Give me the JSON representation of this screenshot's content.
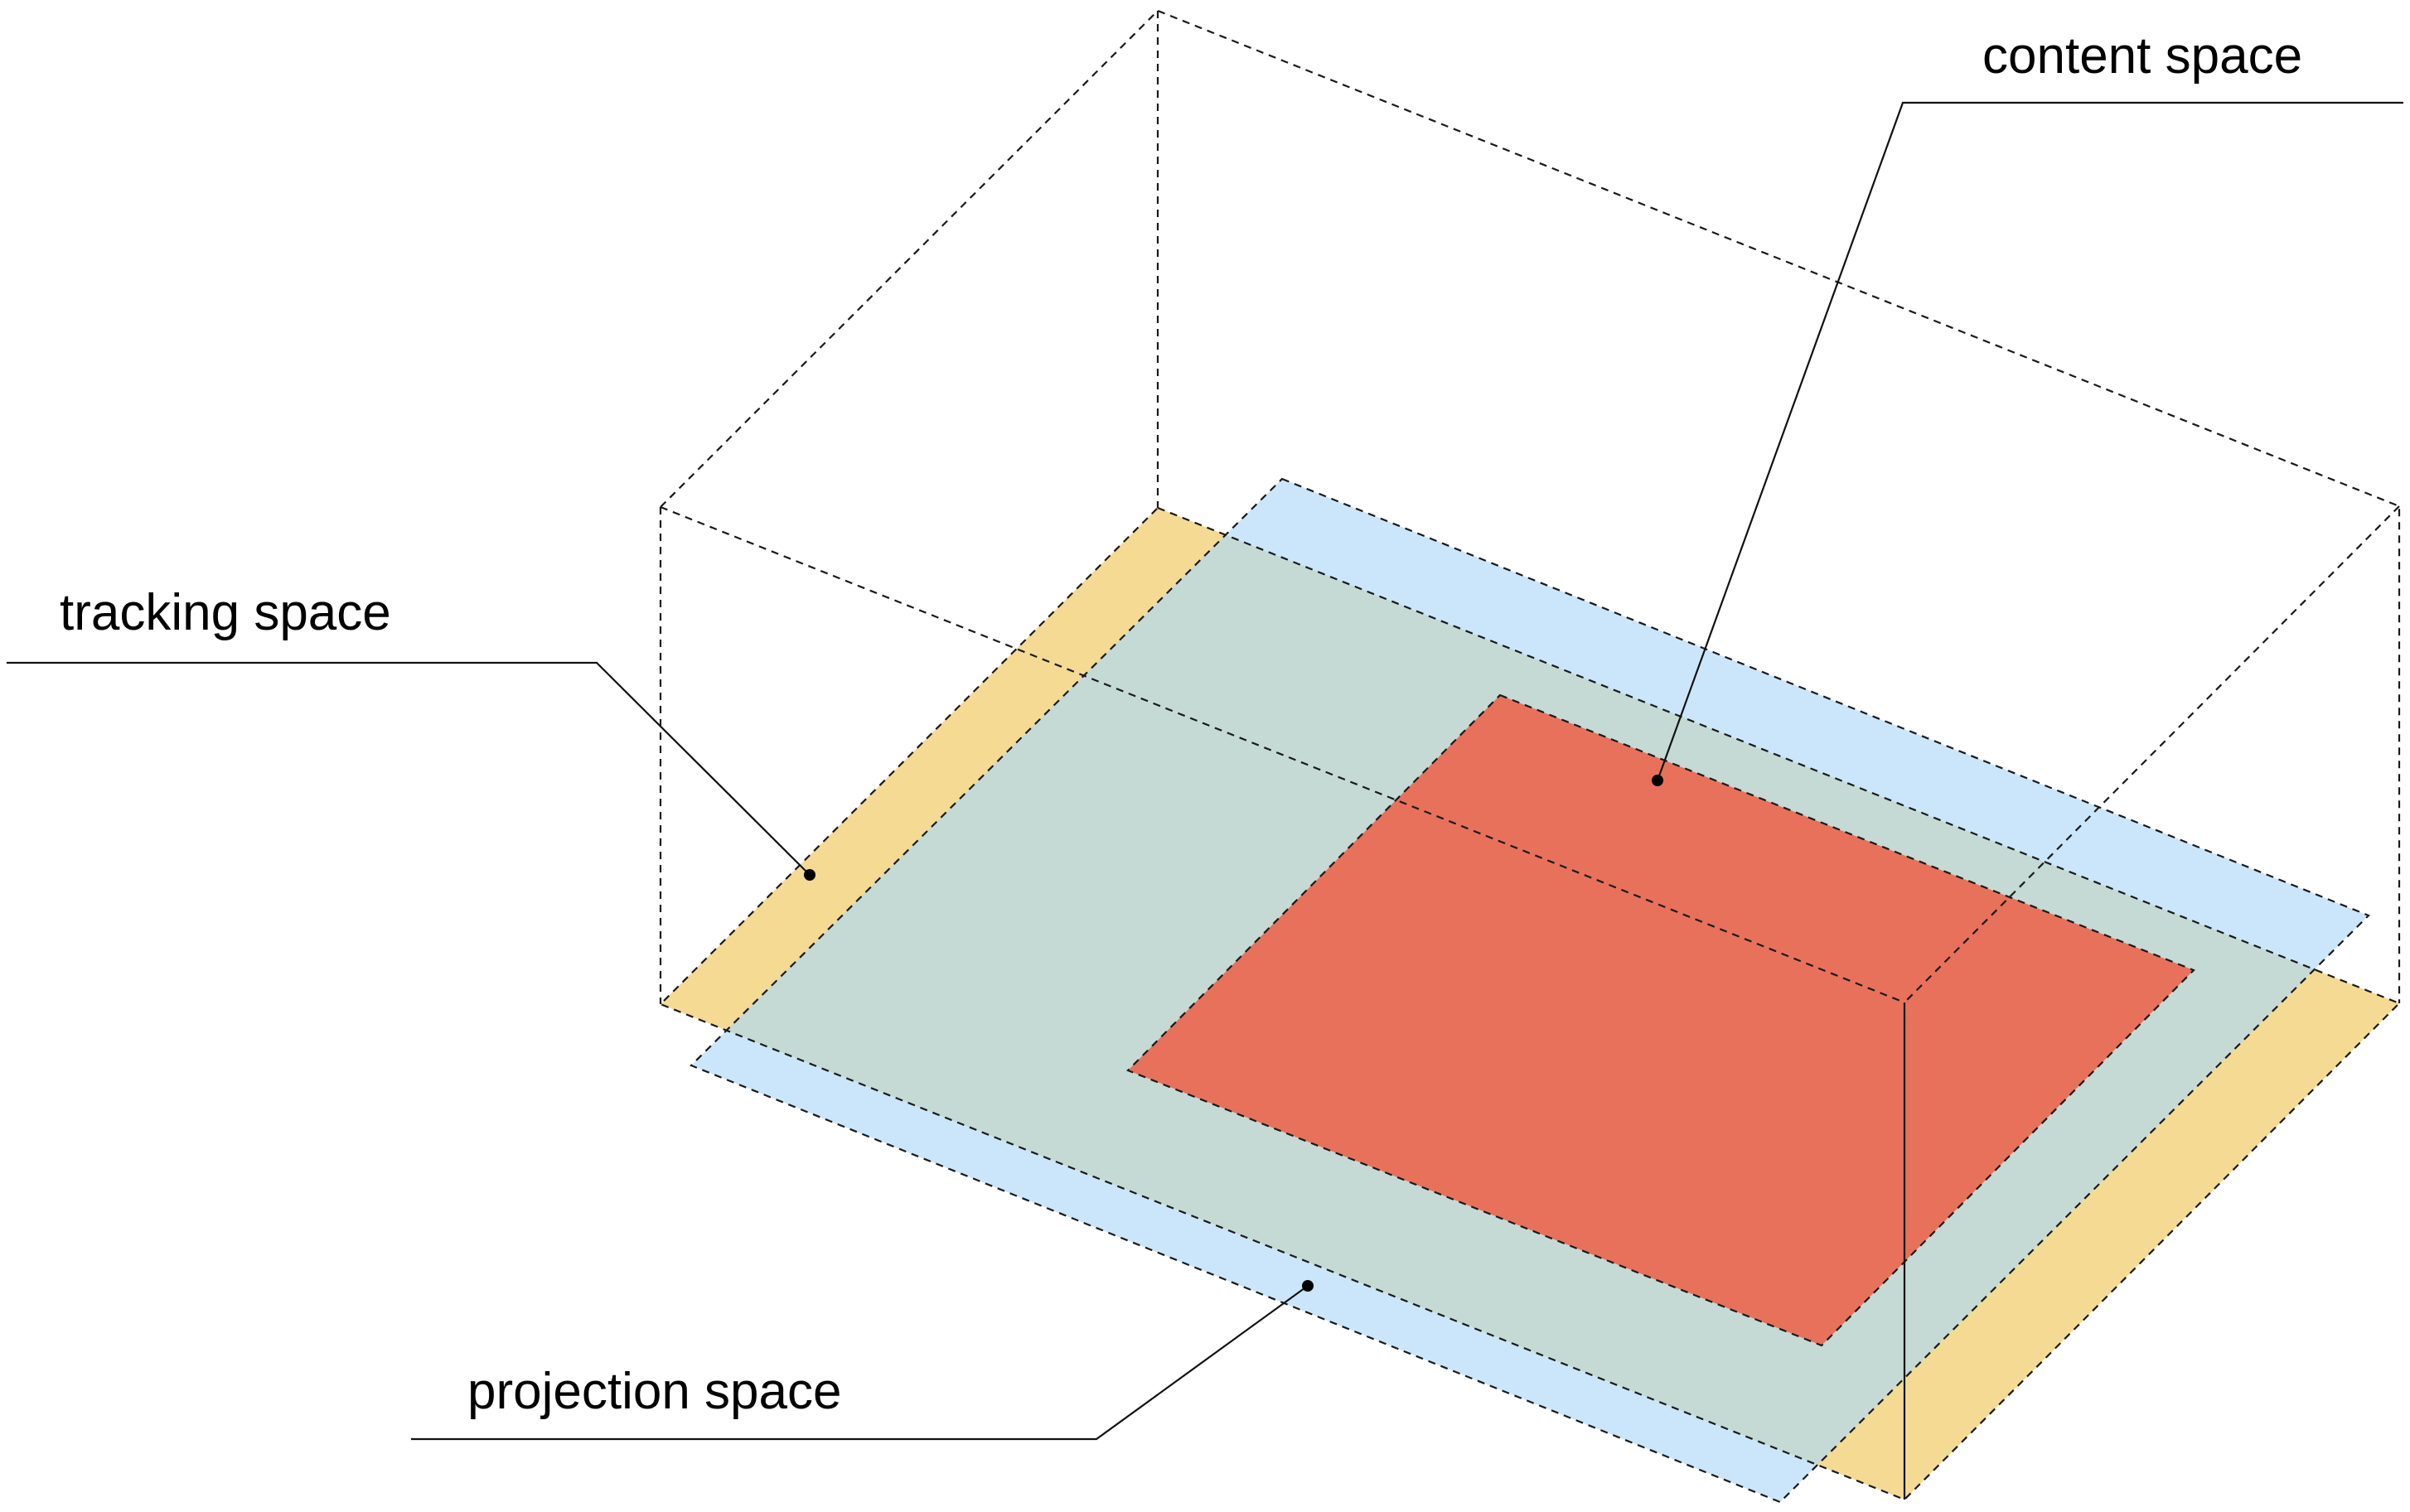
{
  "labels": {
    "content": "content space",
    "tracking": "tracking space",
    "projection": "projection space"
  },
  "colors": {
    "tracking_fill": "#f5da93",
    "projection_fill": "#cbe6fb",
    "overlap_fill": "#c5dad5",
    "content_fill": "#e8715c",
    "line": "#1a1a1a"
  }
}
